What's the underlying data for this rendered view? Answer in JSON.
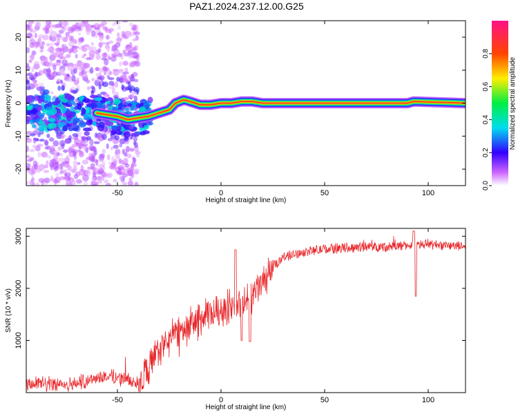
{
  "title": "PAZ1.2024.237.12.00.G25",
  "chart_data": [
    {
      "type": "heatmap",
      "xlabel": "Height of straight line (km)",
      "ylabel": "Frequency (Hz)",
      "xlim": [
        -94,
        118
      ],
      "ylim": [
        -25,
        25
      ],
      "xticks": [
        -50,
        0,
        50,
        100
      ],
      "yticks": [
        -20,
        -10,
        0,
        10,
        20
      ],
      "colorbar": {
        "label": "Normalized spectral amplitude",
        "range": [
          0,
          1
        ],
        "ticks": [
          0.0,
          0.2,
          0.4,
          0.6,
          0.8
        ],
        "tick_labels": [
          "0.0",
          "0.2",
          "0.4",
          "0.6",
          "0.8"
        ]
      },
      "ridge": {
        "x": [
          -60,
          -50,
          -45,
          -40,
          -35,
          -30,
          -25,
          -22,
          -18,
          -15,
          -10,
          -5,
          0,
          5,
          10,
          15,
          20,
          50,
          90,
          93,
          118
        ],
        "frequency": [
          -3,
          -4,
          -5,
          -4.5,
          -4,
          -3,
          -2,
          0,
          1,
          0.5,
          -0.5,
          -0.5,
          0,
          0,
          0.5,
          0.5,
          0,
          0,
          0,
          0.5,
          0
        ]
      }
    },
    {
      "type": "line",
      "xlabel": "Height of straight line (km)",
      "ylabel": "SNR (10 * v/v)",
      "xlim": [
        -94,
        118
      ],
      "ylim": [
        0,
        3150
      ],
      "xticks": [
        -50,
        0,
        50,
        100
      ],
      "yticks": [
        1000,
        2000,
        3000
      ],
      "color": "#e8262a",
      "trend": {
        "x": [
          -94,
          -70,
          -60,
          -50,
          -40,
          -35,
          -30,
          -20,
          -10,
          0,
          10,
          15,
          20,
          25,
          30,
          40,
          50,
          60,
          70,
          80,
          90,
          100,
          118
        ],
        "y": [
          150,
          170,
          300,
          300,
          180,
          450,
          800,
          1200,
          1400,
          1600,
          1700,
          1850,
          2100,
          2400,
          2600,
          2700,
          2750,
          2780,
          2800,
          2800,
          2820,
          2850,
          2800
        ]
      },
      "features": [
        {
          "x": 93,
          "y": 3100
        },
        {
          "x": 94,
          "y": 1850
        },
        {
          "x": 7,
          "y": 2740
        },
        {
          "x": 10,
          "y": 1000
        },
        {
          "x": 14,
          "y": 980
        }
      ]
    }
  ]
}
